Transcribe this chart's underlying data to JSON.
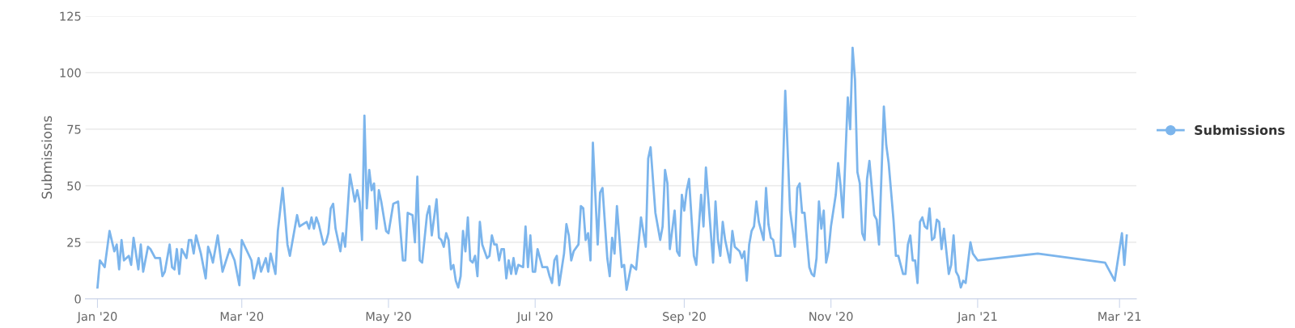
{
  "chart_data": {
    "type": "line",
    "ylabel": "Submissions",
    "ylim": [
      0,
      125
    ],
    "yticks": [
      0,
      25,
      50,
      75,
      100,
      125
    ],
    "xlim": [
      "2019-12-27",
      "2021-03-08"
    ],
    "xticks": [
      {
        "value": "2020-01-01",
        "label": "Jan '20"
      },
      {
        "value": "2020-03-01",
        "label": "Mar '20"
      },
      {
        "value": "2020-05-01",
        "label": "May '20"
      },
      {
        "value": "2020-07-01",
        "label": "Jul '20"
      },
      {
        "value": "2020-09-01",
        "label": "Sep '20"
      },
      {
        "value": "2020-11-01",
        "label": "Nov '20"
      },
      {
        "value": "2021-01-01",
        "label": "Jan '21"
      },
      {
        "value": "2021-03-01",
        "label": "Mar '21"
      }
    ],
    "grid": "y",
    "legend": "right",
    "line_style": "solid",
    "x": [
      "2020-01-01",
      "2020-01-02",
      "2020-01-04",
      "2020-01-06",
      "2020-01-08",
      "2020-01-09",
      "2020-01-10",
      "2020-01-11",
      "2020-01-12",
      "2020-01-14",
      "2020-01-15",
      "2020-01-16",
      "2020-01-18",
      "2020-01-19",
      "2020-01-20",
      "2020-01-22",
      "2020-01-23",
      "2020-01-25",
      "2020-01-27",
      "2020-01-28",
      "2020-01-29",
      "2020-01-31",
      "2020-02-01",
      "2020-02-02",
      "2020-02-03",
      "2020-02-04",
      "2020-02-05",
      "2020-02-07",
      "2020-02-08",
      "2020-02-09",
      "2020-02-10",
      "2020-02-11",
      "2020-02-13",
      "2020-02-15",
      "2020-02-16",
      "2020-02-17",
      "2020-02-18",
      "2020-02-20",
      "2020-02-22",
      "2020-02-25",
      "2020-02-27",
      "2020-02-29",
      "2020-03-01",
      "2020-03-05",
      "2020-03-06",
      "2020-03-08",
      "2020-03-09",
      "2020-03-11",
      "2020-03-12",
      "2020-03-13",
      "2020-03-15",
      "2020-03-16",
      "2020-03-18",
      "2020-03-20",
      "2020-03-21",
      "2020-03-24",
      "2020-03-25",
      "2020-03-28",
      "2020-03-29",
      "2020-03-30",
      "2020-03-31",
      "2020-04-01",
      "2020-04-02",
      "2020-04-04",
      "2020-04-05",
      "2020-04-06",
      "2020-04-07",
      "2020-04-08",
      "2020-04-09",
      "2020-04-11",
      "2020-04-12",
      "2020-04-13",
      "2020-04-15",
      "2020-04-17",
      "2020-04-18",
      "2020-04-19",
      "2020-04-20",
      "2020-04-21",
      "2020-04-22",
      "2020-04-23",
      "2020-04-24",
      "2020-04-25",
      "2020-04-26",
      "2020-04-27",
      "2020-04-28",
      "2020-04-30",
      "2020-05-01",
      "2020-05-03",
      "2020-05-05",
      "2020-05-07",
      "2020-05-08",
      "2020-05-09",
      "2020-05-11",
      "2020-05-12",
      "2020-05-13",
      "2020-05-14",
      "2020-05-15",
      "2020-05-17",
      "2020-05-18",
      "2020-05-19",
      "2020-05-21",
      "2020-05-22",
      "2020-05-23",
      "2020-05-24",
      "2020-05-25",
      "2020-05-26",
      "2020-05-27",
      "2020-05-28",
      "2020-05-29",
      "2020-05-30",
      "2020-05-31",
      "2020-06-01",
      "2020-06-02",
      "2020-06-03",
      "2020-06-04",
      "2020-06-05",
      "2020-06-06",
      "2020-06-07",
      "2020-06-08",
      "2020-06-09",
      "2020-06-11",
      "2020-06-12",
      "2020-06-13",
      "2020-06-14",
      "2020-06-15",
      "2020-06-16",
      "2020-06-17",
      "2020-06-18",
      "2020-06-19",
      "2020-06-20",
      "2020-06-21",
      "2020-06-22",
      "2020-06-23",
      "2020-06-24",
      "2020-06-26",
      "2020-06-27",
      "2020-06-28",
      "2020-06-29",
      "2020-06-30",
      "2020-07-01",
      "2020-07-02",
      "2020-07-04",
      "2020-07-06",
      "2020-07-07",
      "2020-07-08",
      "2020-07-09",
      "2020-07-10",
      "2020-07-11",
      "2020-07-13",
      "2020-07-14",
      "2020-07-15",
      "2020-07-16",
      "2020-07-17",
      "2020-07-19",
      "2020-07-20",
      "2020-07-21",
      "2020-07-22",
      "2020-07-23",
      "2020-07-24",
      "2020-07-25",
      "2020-07-27",
      "2020-07-28",
      "2020-07-29",
      "2020-07-31",
      "2020-08-01",
      "2020-08-02",
      "2020-08-03",
      "2020-08-04",
      "2020-08-06",
      "2020-08-07",
      "2020-08-08",
      "2020-08-10",
      "2020-08-12",
      "2020-08-14",
      "2020-08-16",
      "2020-08-17",
      "2020-08-18",
      "2020-08-20",
      "2020-08-22",
      "2020-08-23",
      "2020-08-24",
      "2020-08-25",
      "2020-08-26",
      "2020-08-28",
      "2020-08-29",
      "2020-08-30",
      "2020-08-31",
      "2020-09-01",
      "2020-09-02",
      "2020-09-03",
      "2020-09-05",
      "2020-09-06",
      "2020-09-08",
      "2020-09-09",
      "2020-09-10",
      "2020-09-13",
      "2020-09-14",
      "2020-09-15",
      "2020-09-16",
      "2020-09-17",
      "2020-09-18",
      "2020-09-20",
      "2020-09-21",
      "2020-09-22",
      "2020-09-24",
      "2020-09-25",
      "2020-09-26",
      "2020-09-27",
      "2020-09-28",
      "2020-09-29",
      "2020-09-30",
      "2020-10-01",
      "2020-10-02",
      "2020-10-04",
      "2020-10-05",
      "2020-10-06",
      "2020-10-07",
      "2020-10-08",
      "2020-10-09",
      "2020-10-11",
      "2020-10-13",
      "2020-10-15",
      "2020-10-17",
      "2020-10-18",
      "2020-10-19",
      "2020-10-20",
      "2020-10-21",
      "2020-10-23",
      "2020-10-24",
      "2020-10-25",
      "2020-10-26",
      "2020-10-27",
      "2020-10-28",
      "2020-10-29",
      "2020-10-30",
      "2020-10-31",
      "2020-11-01",
      "2020-11-03",
      "2020-11-04",
      "2020-11-05",
      "2020-11-06",
      "2020-11-08",
      "2020-11-09",
      "2020-11-10",
      "2020-11-11",
      "2020-11-12",
      "2020-11-13",
      "2020-11-14",
      "2020-11-15",
      "2020-11-16",
      "2020-11-17",
      "2020-11-19",
      "2020-11-20",
      "2020-11-21",
      "2020-11-23",
      "2020-11-24",
      "2020-11-25",
      "2020-11-27",
      "2020-11-28",
      "2020-11-29",
      "2020-12-01",
      "2020-12-02",
      "2020-12-03",
      "2020-12-04",
      "2020-12-05",
      "2020-12-06",
      "2020-12-07",
      "2020-12-08",
      "2020-12-09",
      "2020-12-10",
      "2020-12-11",
      "2020-12-12",
      "2020-12-13",
      "2020-12-14",
      "2020-12-15",
      "2020-12-16",
      "2020-12-17",
      "2020-12-18",
      "2020-12-19",
      "2020-12-20",
      "2020-12-21",
      "2020-12-22",
      "2020-12-23",
      "2020-12-24",
      "2020-12-25",
      "2020-12-26",
      "2020-12-27",
      "2020-12-29",
      "2020-12-30",
      "2021-01-01",
      "2021-01-26",
      "2021-02-23",
      "2021-02-27",
      "2021-03-02",
      "2021-03-03",
      "2021-03-04"
    ],
    "series": [
      {
        "name": "Submissions",
        "color": "#7cb5ec",
        "values": [
          5,
          17,
          14,
          30,
          21,
          24,
          13,
          26,
          17,
          19,
          15,
          27,
          13,
          24,
          12,
          23,
          22,
          18,
          18,
          10,
          12,
          24,
          14,
          13,
          22,
          11,
          22,
          18,
          26,
          26,
          20,
          28,
          20,
          9,
          23,
          20,
          16,
          28,
          12,
          22,
          17,
          6,
          26,
          17,
          9,
          18,
          12,
          18,
          12,
          20,
          11,
          30,
          49,
          24,
          19,
          37,
          32,
          34,
          31,
          36,
          31,
          36,
          33,
          24,
          25,
          29,
          40,
          42,
          31,
          21,
          29,
          23,
          55,
          43,
          48,
          43,
          26,
          81,
          40,
          57,
          48,
          51,
          31,
          48,
          43,
          30,
          29,
          42,
          43,
          17,
          17,
          38,
          37,
          25,
          54,
          17,
          16,
          37,
          41,
          28,
          44,
          27,
          26,
          23,
          29,
          26,
          13,
          15,
          8,
          5,
          10,
          30,
          21,
          36,
          17,
          16,
          19,
          10,
          34,
          24,
          18,
          19,
          28,
          24,
          24,
          17,
          22,
          22,
          9,
          17,
          11,
          18,
          11,
          15,
          14,
          32,
          14,
          28,
          12,
          12,
          22,
          14,
          14,
          10,
          7,
          17,
          19,
          6,
          20,
          33,
          28,
          17,
          21,
          24,
          41,
          40,
          26,
          29,
          17,
          69,
          24,
          47,
          49,
          18,
          10,
          27,
          20,
          41,
          14,
          15,
          4,
          15,
          13,
          36,
          23,
          62,
          67,
          38,
          26,
          32,
          57,
          51,
          22,
          39,
          21,
          19,
          46,
          39,
          48,
          53,
          19,
          15,
          46,
          32,
          58,
          16,
          43,
          26,
          19,
          34,
          26,
          16,
          30,
          23,
          21,
          18,
          21,
          8,
          24,
          30,
          32,
          43,
          34,
          26,
          49,
          33,
          27,
          26,
          19,
          19,
          92,
          39,
          23,
          49,
          51,
          38,
          38,
          14,
          11,
          10,
          18,
          43,
          31,
          39,
          16,
          21,
          32,
          46,
          60,
          50,
          36,
          89,
          75,
          111,
          97,
          56,
          51,
          29,
          26,
          53,
          61,
          37,
          35,
          24,
          85,
          68,
          60,
          35,
          19,
          19,
          11,
          11,
          24,
          28,
          17,
          17,
          7,
          34,
          36,
          32,
          31,
          40,
          26,
          27,
          35,
          34,
          22,
          31,
          21,
          11,
          15,
          28,
          12,
          10,
          5,
          8,
          7,
          25,
          20,
          17,
          20,
          16,
          8,
          29,
          15,
          28
        ]
      }
    ]
  }
}
